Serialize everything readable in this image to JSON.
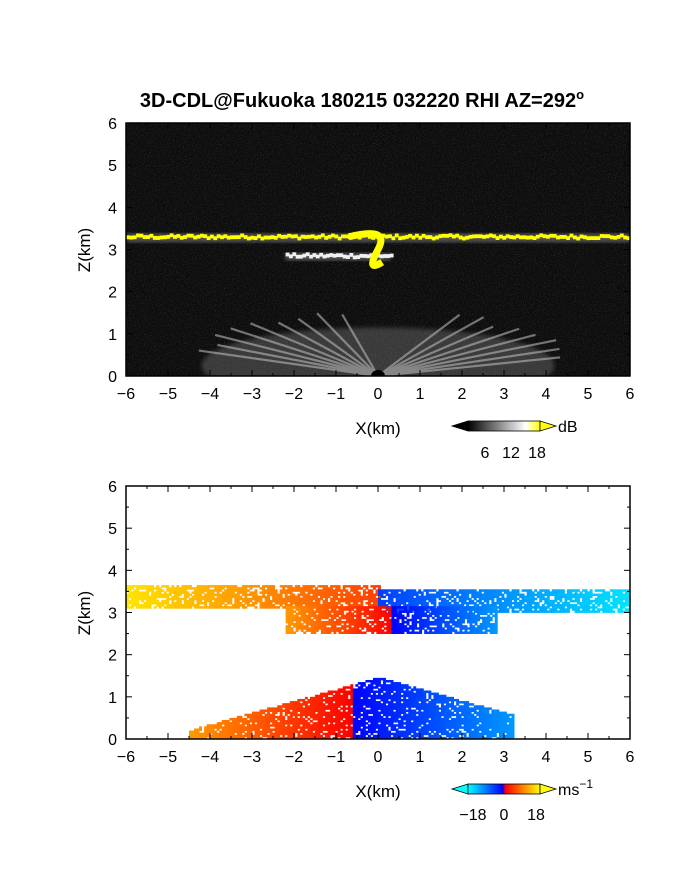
{
  "title": "3D-CDL@Fukuoka 180215 032220 RHI AZ=292",
  "title_degree_symbol": "o",
  "chart_data": [
    {
      "type": "heatmap",
      "name": "backscatter-intensity",
      "xlabel": "X(km)",
      "ylabel": "Z(km)",
      "xlim": [
        -6,
        6
      ],
      "ylim": [
        0,
        6
      ],
      "xticks": [
        "−6",
        "−5",
        "−4",
        "−3",
        "−2",
        "−1",
        "0",
        "1",
        "2",
        "3",
        "4",
        "5",
        "6"
      ],
      "yticks": [
        "0",
        "1",
        "2",
        "3",
        "4",
        "5",
        "6"
      ],
      "colorbar": {
        "unit": "dB",
        "tick_labels": [
          "6",
          "12",
          "18"
        ],
        "range": [
          0,
          20
        ],
        "colors": [
          "#000000",
          "#ffffff",
          "#ffff00"
        ]
      },
      "features": [
        {
          "label": "cloud-base layer",
          "x_range": [
            -6,
            6
          ],
          "z_km": 3.3,
          "value_db": 18
        },
        {
          "label": "lower cloud layer",
          "x_range": [
            -2.2,
            0.3
          ],
          "z_km": 2.85,
          "value_db": 16
        },
        {
          "label": "near-ground returns",
          "x_range": [
            -4.5,
            4.5
          ],
          "z_range": [
            0,
            1.5
          ],
          "value_db": 10
        }
      ]
    },
    {
      "type": "heatmap",
      "name": "doppler-velocity",
      "xlabel": "X(km)",
      "ylabel": "Z(km)",
      "xlim": [
        -6,
        6
      ],
      "ylim": [
        0,
        6
      ],
      "xticks": [
        "−6",
        "−5",
        "−4",
        "−3",
        "−2",
        "−1",
        "0",
        "1",
        "2",
        "3",
        "4",
        "5",
        "6"
      ],
      "yticks": [
        "0",
        "1",
        "2",
        "3",
        "4",
        "5",
        "6"
      ],
      "colorbar": {
        "unit": "ms",
        "unit_exponent": "−1",
        "tick_labels": [
          "−18",
          "0",
          "18"
        ],
        "range": [
          -20,
          20
        ],
        "colors": [
          "#00ffff",
          "#0000ff",
          "#ff0000",
          "#ffff00"
        ]
      },
      "features": [
        {
          "label": "upper layer left",
          "x_range": [
            -6,
            0
          ],
          "z_range": [
            3.1,
            3.6
          ],
          "velocity_ms": [
            18,
            5
          ]
        },
        {
          "label": "upper layer right",
          "x_range": [
            0,
            6
          ],
          "z_range": [
            3.0,
            3.5
          ],
          "velocity_ms": [
            -5,
            -18
          ]
        },
        {
          "label": "lower layer",
          "x_range": [
            -2.2,
            2.8
          ],
          "z_range": [
            2.5,
            3.1
          ],
          "velocity_ms": [
            12,
            -12
          ]
        },
        {
          "label": "boundary layer",
          "x_range": [
            -4.5,
            3.2
          ],
          "z_range": [
            0,
            1.5
          ],
          "velocity_ms": [
            12,
            -12
          ]
        }
      ]
    }
  ]
}
